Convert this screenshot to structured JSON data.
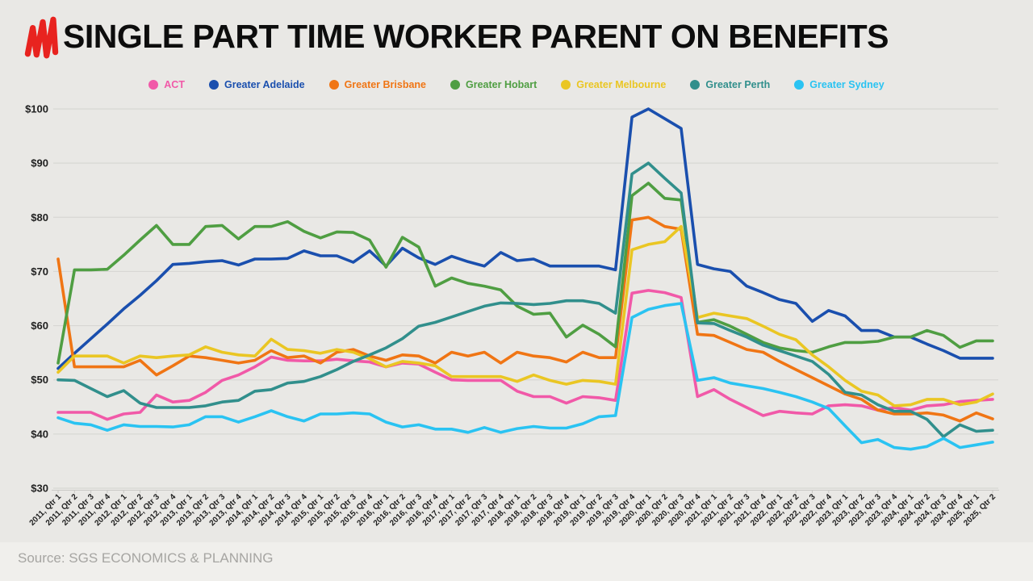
{
  "header": {
    "title": "SINGLE PART TIME WORKER PARENT ON BENEFITS"
  },
  "footer": {
    "source": "Source: SGS ECONOMICS & PLANNING"
  },
  "colors": {
    "background": "#e9e8e5",
    "footer_band": "#f0efec",
    "grid": "#d8d7d4",
    "axis_line": "#c9c8c5",
    "axis_text": "#1f1f1f",
    "title_text": "#0d0d0d",
    "source_text": "#a6a5a2",
    "logo_red": "#e8231f"
  },
  "chart_data": {
    "type": "line",
    "title": "SINGLE PART TIME WORKER PARENT ON BENEFITS",
    "xlabel": "",
    "ylabel": "",
    "ylim": [
      30,
      100
    ],
    "grid": "horizontal",
    "legend_position": "top",
    "y_ticks": [
      "$100",
      "$90",
      "$80",
      "$70",
      "$60",
      "$50",
      "$40",
      "$30"
    ],
    "x_labels": [
      "2011, Qtr 1",
      "2011, Qtr 2",
      "2011, Qtr 3",
      "2011, Qtr 4",
      "2012, Qtr 1",
      "2012, Qtr 2",
      "2012, Qtr 3",
      "2012, Qtr 4",
      "2013, Qtr 1",
      "2013, Qtr 2",
      "2013, Qtr 3",
      "2013, Qtr 4",
      "2014, Qtr 1",
      "2014, Qtr 2",
      "2014, Qtr 3",
      "2014, Qtr 4",
      "2015, Qtr 1",
      "2015, Qtr 2",
      "2015, Qtr 3",
      "2015, Qtr 4",
      "2016, Qtr 1",
      "2016, Qtr 2",
      "2016, Qtr 3",
      "2016, Qtr 4",
      "2017, Qtr 1",
      "2017, Qtr 2",
      "2017, Qtr 3",
      "2017, Qtr 4",
      "2018, Qtr 1",
      "2018, Qtr 2",
      "2018, Qtr 3",
      "2018, Qtr 4",
      "2019, Qtr 1",
      "2019, Qtr 2",
      "2019, Qtr 3",
      "2019, Qtr 4",
      "2020, Qtr 1",
      "2020, Qtr 2",
      "2020, Qtr 3",
      "2020, Qtr 4",
      "2021, Qtr 1",
      "2021, Qtr 2",
      "2021, Qtr 3",
      "2021, Qtr 4",
      "2022, Qtr 1",
      "2022, Qtr 2",
      "2022, Qtr 3",
      "2022, Qtr 4",
      "2023, Qtr 1",
      "2023, Qtr 2",
      "2023, Qtr 3",
      "2023, Qtr 4",
      "2024, Qtr 1",
      "2024, Qtr 2",
      "2024, Qtr 3",
      "2024, Qtr 4",
      "2025, Qtr 1",
      "2025, Qtr 2"
    ],
    "series": [
      {
        "name": "ACT",
        "color": "#f159a8",
        "values": [
          44,
          44,
          44,
          42.7,
          43.7,
          44,
          47.2,
          45.9,
          46.2,
          47.7,
          49.9,
          50.9,
          52.4,
          54.2,
          53.6,
          53.5,
          53.5,
          53.8,
          53.5,
          53.3,
          52.4,
          53.1,
          52.9,
          51.4,
          50,
          49.9,
          49.9,
          49.9,
          47.9,
          46.9,
          46.9,
          45.7,
          46.9,
          46.7,
          46.2,
          66,
          66.5,
          66.1,
          65.2,
          46.9,
          48.2,
          46.4,
          44.9,
          43.4,
          44.2,
          43.9,
          43.7,
          45.2,
          45.4,
          45.2,
          44.4,
          44.9,
          44.4,
          45.2,
          45.4,
          46,
          46.2,
          46.4
        ]
      },
      {
        "name": "Greater Adelaide",
        "color": "#1a4fae",
        "values": [
          52.1,
          54.9,
          57.6,
          60.3,
          63.1,
          65.6,
          68.3,
          71.3,
          71.5,
          71.8,
          72,
          71.2,
          72.3,
          72.3,
          72.4,
          73.8,
          72.9,
          72.9,
          71.7,
          73.8,
          71,
          74.3,
          72.5,
          71.3,
          72.8,
          71.8,
          71,
          73.5,
          72,
          72.3,
          71,
          71,
          71,
          71,
          70.3,
          98.5,
          100,
          98.2,
          96.4,
          71.3,
          70.5,
          70,
          67.3,
          66.1,
          64.8,
          64.1,
          60.8,
          62.8,
          61.8,
          59.1,
          59.1,
          57.9,
          57.9,
          56.6,
          55.4,
          54,
          54,
          54
        ]
      },
      {
        "name": "Greater Brisbane",
        "color": "#f07514",
        "values": [
          72.3,
          52.4,
          52.4,
          52.4,
          52.4,
          53.6,
          50.9,
          52.6,
          54.4,
          54.1,
          53.6,
          53.1,
          53.6,
          55.4,
          54.1,
          54.4,
          53.1,
          55.1,
          55.6,
          54.4,
          53.6,
          54.6,
          54.4,
          53.1,
          55.1,
          54.4,
          55.1,
          53.1,
          55.1,
          54.4,
          54.1,
          53.3,
          55.1,
          54.1,
          54.1,
          79.5,
          80,
          78.3,
          77.8,
          58.4,
          58.2,
          56.9,
          55.6,
          55.1,
          53.4,
          51.9,
          50.4,
          48.9,
          47.4,
          46.4,
          44.4,
          43.7,
          43.7,
          43.9,
          43.5,
          42.4,
          43.9,
          42.8
        ]
      },
      {
        "name": "Greater Hobart",
        "color": "#4f9e42",
        "values": [
          53.1,
          70.3,
          70.3,
          70.4,
          73,
          75.8,
          78.5,
          75,
          75,
          78.3,
          78.5,
          76,
          78.3,
          78.3,
          79.2,
          77.4,
          76.2,
          77.3,
          77.2,
          75.8,
          70.8,
          76.3,
          74.5,
          67.3,
          68.8,
          67.8,
          67.3,
          66.6,
          63.6,
          62.1,
          62.3,
          57.9,
          60.1,
          58.4,
          56.1,
          84,
          86.3,
          83.5,
          83.2,
          60.6,
          61.1,
          59.9,
          58.4,
          56.9,
          55.9,
          55.4,
          55.1,
          56.1,
          56.9,
          56.9,
          57.1,
          57.9,
          57.9,
          59.1,
          58.2,
          56,
          57.2,
          57.2
        ]
      },
      {
        "name": "Greater Melbourne",
        "color": "#eac623",
        "values": [
          51.4,
          54.4,
          54.4,
          54.4,
          53.1,
          54.4,
          54.1,
          54.4,
          54.6,
          56.1,
          55.1,
          54.6,
          54.4,
          57.5,
          55.6,
          55.4,
          54.9,
          55.6,
          55.1,
          53.9,
          52.4,
          53.4,
          53.1,
          52.6,
          50.6,
          50.6,
          50.6,
          50.6,
          49.7,
          50.9,
          49.9,
          49.2,
          49.9,
          49.7,
          49.2,
          74,
          75,
          75.5,
          78.3,
          61.5,
          62.3,
          61.8,
          61.3,
          59.9,
          58.4,
          57.4,
          54.6,
          52.4,
          49.9,
          47.9,
          47.2,
          45.2,
          45.4,
          46.4,
          46.4,
          45.4,
          45.9,
          47.4
        ]
      },
      {
        "name": "Greater Perth",
        "color": "#318f8c",
        "values": [
          50,
          49.9,
          48.4,
          46.9,
          48,
          45.7,
          44.9,
          44.9,
          44.9,
          45.2,
          45.9,
          46.2,
          47.9,
          48.2,
          49.4,
          49.7,
          50.6,
          51.9,
          53.4,
          54.6,
          55.9,
          57.6,
          59.9,
          60.6,
          61.6,
          62.6,
          63.6,
          64.2,
          64.1,
          63.9,
          64.1,
          64.6,
          64.6,
          64.1,
          62.3,
          88,
          90,
          87.2,
          84.5,
          60.5,
          60.4,
          59.1,
          57.9,
          56.4,
          55.4,
          54.4,
          53.4,
          51,
          47.7,
          47.2,
          45.4,
          44.2,
          44.2,
          42.7,
          39.5,
          41.7,
          40.5,
          40.7
        ]
      },
      {
        "name": "Greater Sydney",
        "color": "#2ac3f2",
        "values": [
          43,
          42,
          41.7,
          40.7,
          41.7,
          41.4,
          41.4,
          41.3,
          41.7,
          43.2,
          43.2,
          42.2,
          43.2,
          44.3,
          43.2,
          42.4,
          43.7,
          43.7,
          43.9,
          43.7,
          42.2,
          41.3,
          41.7,
          40.9,
          40.9,
          40.3,
          41.2,
          40.3,
          41,
          41.4,
          41.1,
          41.1,
          41.9,
          43.2,
          43.4,
          61.5,
          63,
          63.7,
          64.1,
          49.9,
          50.4,
          49.4,
          48.9,
          48.4,
          47.7,
          46.9,
          45.9,
          44.7,
          41.5,
          38.4,
          39,
          37.5,
          37.2,
          37.7,
          39.2,
          37.5,
          38,
          38.5
        ]
      }
    ]
  }
}
